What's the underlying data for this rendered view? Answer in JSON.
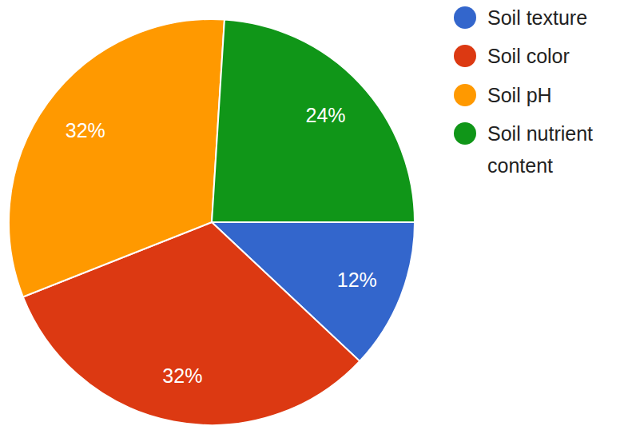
{
  "chart_data": {
    "type": "pie",
    "categories": [
      "Soil texture",
      "Soil color",
      "Soil pH",
      "Soil nutrient content"
    ],
    "values": [
      12,
      32,
      32,
      24
    ],
    "value_labels": [
      "12%",
      "32%",
      "32%",
      "24%"
    ],
    "colors": [
      "#3366cc",
      "#dc3912",
      "#ff9900",
      "#109618"
    ],
    "data_labels": true,
    "legend": "right"
  }
}
